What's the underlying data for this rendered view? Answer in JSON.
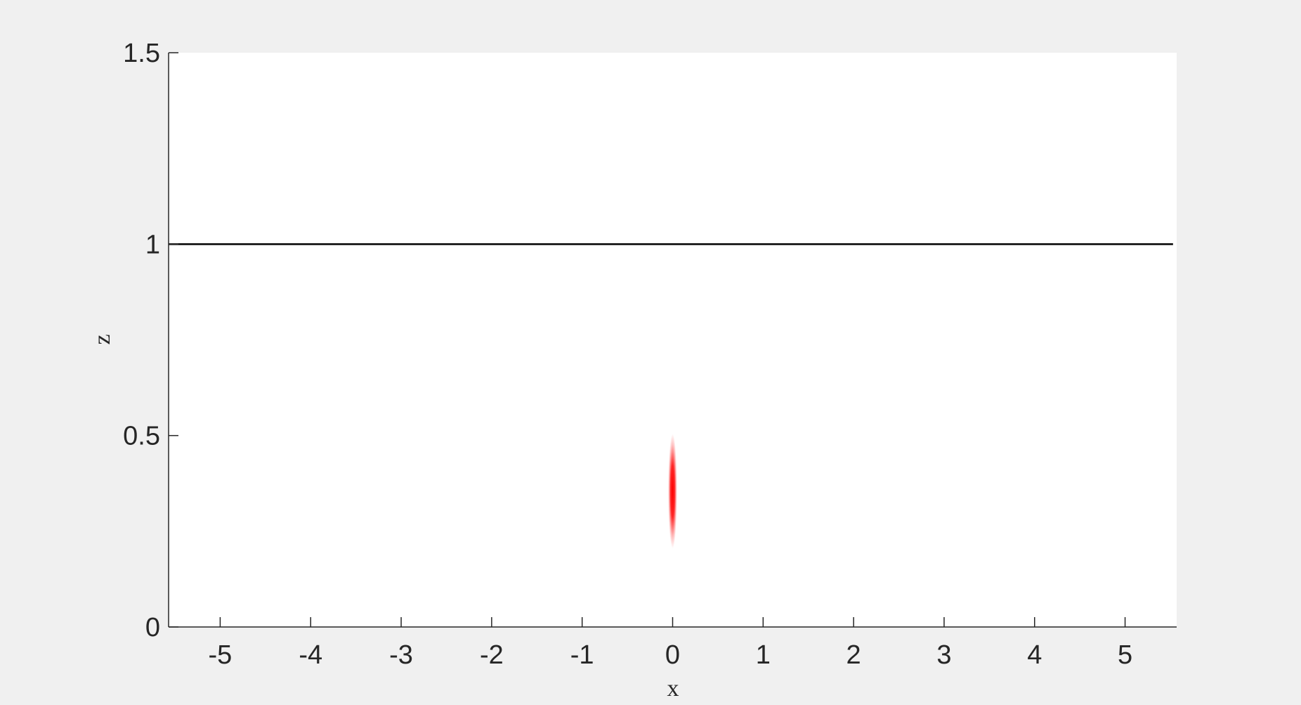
{
  "chart_data": {
    "type": "heatmap",
    "title": "",
    "xlabel": "x",
    "ylabel": "z",
    "xlim": [
      -5.57,
      5.57
    ],
    "ylim": [
      0,
      1.5
    ],
    "xticks": [
      -5,
      -4,
      -3,
      -2,
      -1,
      0,
      1,
      2,
      3,
      4,
      5
    ],
    "xtick_labels": [
      "-5",
      "-4",
      "-3",
      "-2",
      "-1",
      "0",
      "1",
      "2",
      "3",
      "4",
      "5"
    ],
    "yticks": [
      0,
      0.5,
      1,
      1.5
    ],
    "ytick_labels": [
      "0",
      "0.5",
      "1",
      "1.5"
    ],
    "grid": false,
    "line": {
      "z": 1,
      "x_range": [
        -5.57,
        5.53
      ],
      "color": "#000000"
    },
    "blob": {
      "x": 0,
      "z_center": 0.355,
      "z_range": [
        0.2,
        0.5
      ],
      "x_halfwidth": 0.05,
      "color": "#ff0000"
    },
    "colors": {
      "axes_bg": "#ffffff",
      "figure_bg": "#f0f0f0",
      "axis": "#262626"
    }
  }
}
